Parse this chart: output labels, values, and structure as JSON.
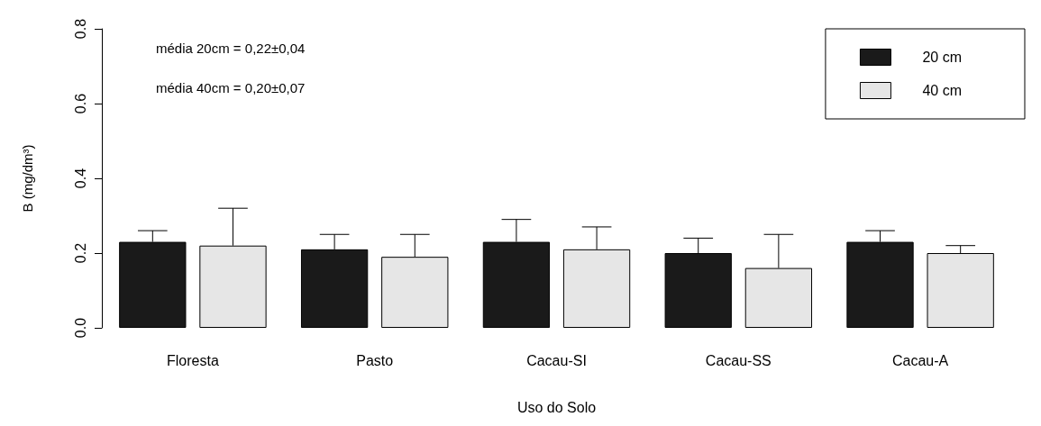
{
  "chart_data": {
    "type": "bar",
    "xlabel": "Uso do Solo",
    "ylabel": "B (mg/dm³)",
    "categories": [
      "Floresta",
      "Pasto",
      "Cacau-SI",
      "Cacau-SS",
      "Cacau-A"
    ],
    "series": [
      {
        "name": "20 cm",
        "color": "#1a1a1a",
        "values": [
          0.23,
          0.21,
          0.23,
          0.2,
          0.23
        ],
        "errors": [
          [
            0.23,
            0.26
          ],
          [
            0.21,
            0.25
          ],
          [
            0.23,
            0.29
          ],
          [
            0.2,
            0.24
          ],
          [
            0.23,
            0.26
          ]
        ]
      },
      {
        "name": "40 cm",
        "color": "#e6e6e6",
        "values": [
          0.22,
          0.19,
          0.21,
          0.16,
          0.2
        ],
        "errors": [
          [
            0.22,
            0.32
          ],
          [
            0.19,
            0.25
          ],
          [
            0.21,
            0.27
          ],
          [
            0.16,
            0.25
          ],
          [
            0.2,
            0.22
          ]
        ]
      }
    ],
    "ylim": [
      0,
      0.8
    ],
    "yticks": [
      {
        "value": 0,
        "label": "0.0"
      },
      {
        "value": 0.2,
        "label": "0.2"
      },
      {
        "value": 0.4,
        "label": "0.4"
      },
      {
        "value": 0.6,
        "label": "0.6"
      },
      {
        "value": 0.8,
        "label": "0.8"
      }
    ],
    "grid": false,
    "legend": "top right",
    "annotations": [
      "média 20cm = 0,22±0,04",
      "média 40cm = 0,20±0,07"
    ]
  }
}
